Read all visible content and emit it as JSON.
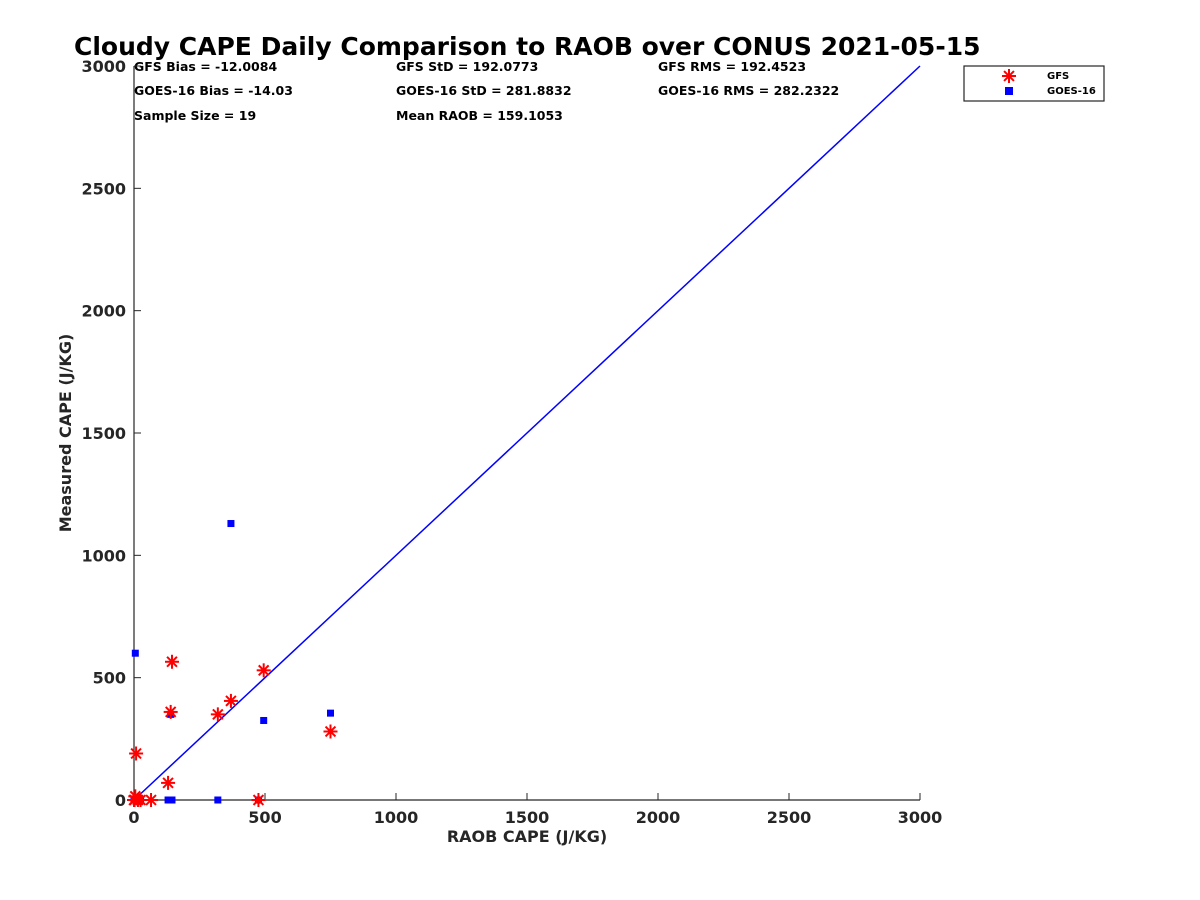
{
  "chart_data": {
    "type": "scatter",
    "title": "Cloudy CAPE Daily Comparison to RAOB over CONUS 2021-05-15",
    "xlabel": "RAOB CAPE (J/KG)",
    "ylabel": "Measured CAPE (J/KG)",
    "xlim": [
      0,
      3000
    ],
    "ylim": [
      0,
      3000
    ],
    "xticks": [
      0,
      500,
      1000,
      1500,
      2000,
      2500,
      3000
    ],
    "yticks": [
      0,
      500,
      1000,
      1500,
      2000,
      2500,
      3000
    ],
    "grid": false,
    "legend_position": "top-right",
    "stats": [
      [
        "GFS Bias = -12.0084",
        "GFS StD = 192.0773",
        "GFS RMS = 192.4523"
      ],
      [
        "GOES-16 Bias = -14.03",
        "GOES-16 StD = 281.8832",
        "GOES-16 RMS = 282.2322"
      ],
      [
        "Sample Size = 19",
        "Mean RAOB = 159.1053",
        ""
      ]
    ],
    "reference_line": {
      "x": [
        0,
        3000
      ],
      "y": [
        0,
        3000
      ],
      "color": "#0000ff"
    },
    "series": [
      {
        "name": "GFS",
        "marker": "asterisk",
        "color": "#ff0000",
        "points": [
          [
            0,
            0
          ],
          [
            2,
            0
          ],
          [
            5,
            15
          ],
          [
            8,
            190
          ],
          [
            15,
            0
          ],
          [
            25,
            0
          ],
          [
            65,
            0
          ],
          [
            130,
            70
          ],
          [
            140,
            360
          ],
          [
            145,
            565
          ],
          [
            320,
            350
          ],
          [
            370,
            405
          ],
          [
            475,
            0
          ],
          [
            495,
            530
          ],
          [
            750,
            280
          ]
        ]
      },
      {
        "name": "GOES-16",
        "marker": "square",
        "color": "#0000ff",
        "points": [
          [
            0,
            0
          ],
          [
            2,
            0
          ],
          [
            5,
            600
          ],
          [
            8,
            0
          ],
          [
            15,
            0
          ],
          [
            25,
            0
          ],
          [
            130,
            0
          ],
          [
            140,
            350
          ],
          [
            145,
            0
          ],
          [
            320,
            0
          ],
          [
            370,
            1130
          ],
          [
            475,
            0
          ],
          [
            495,
            325
          ],
          [
            750,
            355
          ]
        ]
      }
    ]
  }
}
